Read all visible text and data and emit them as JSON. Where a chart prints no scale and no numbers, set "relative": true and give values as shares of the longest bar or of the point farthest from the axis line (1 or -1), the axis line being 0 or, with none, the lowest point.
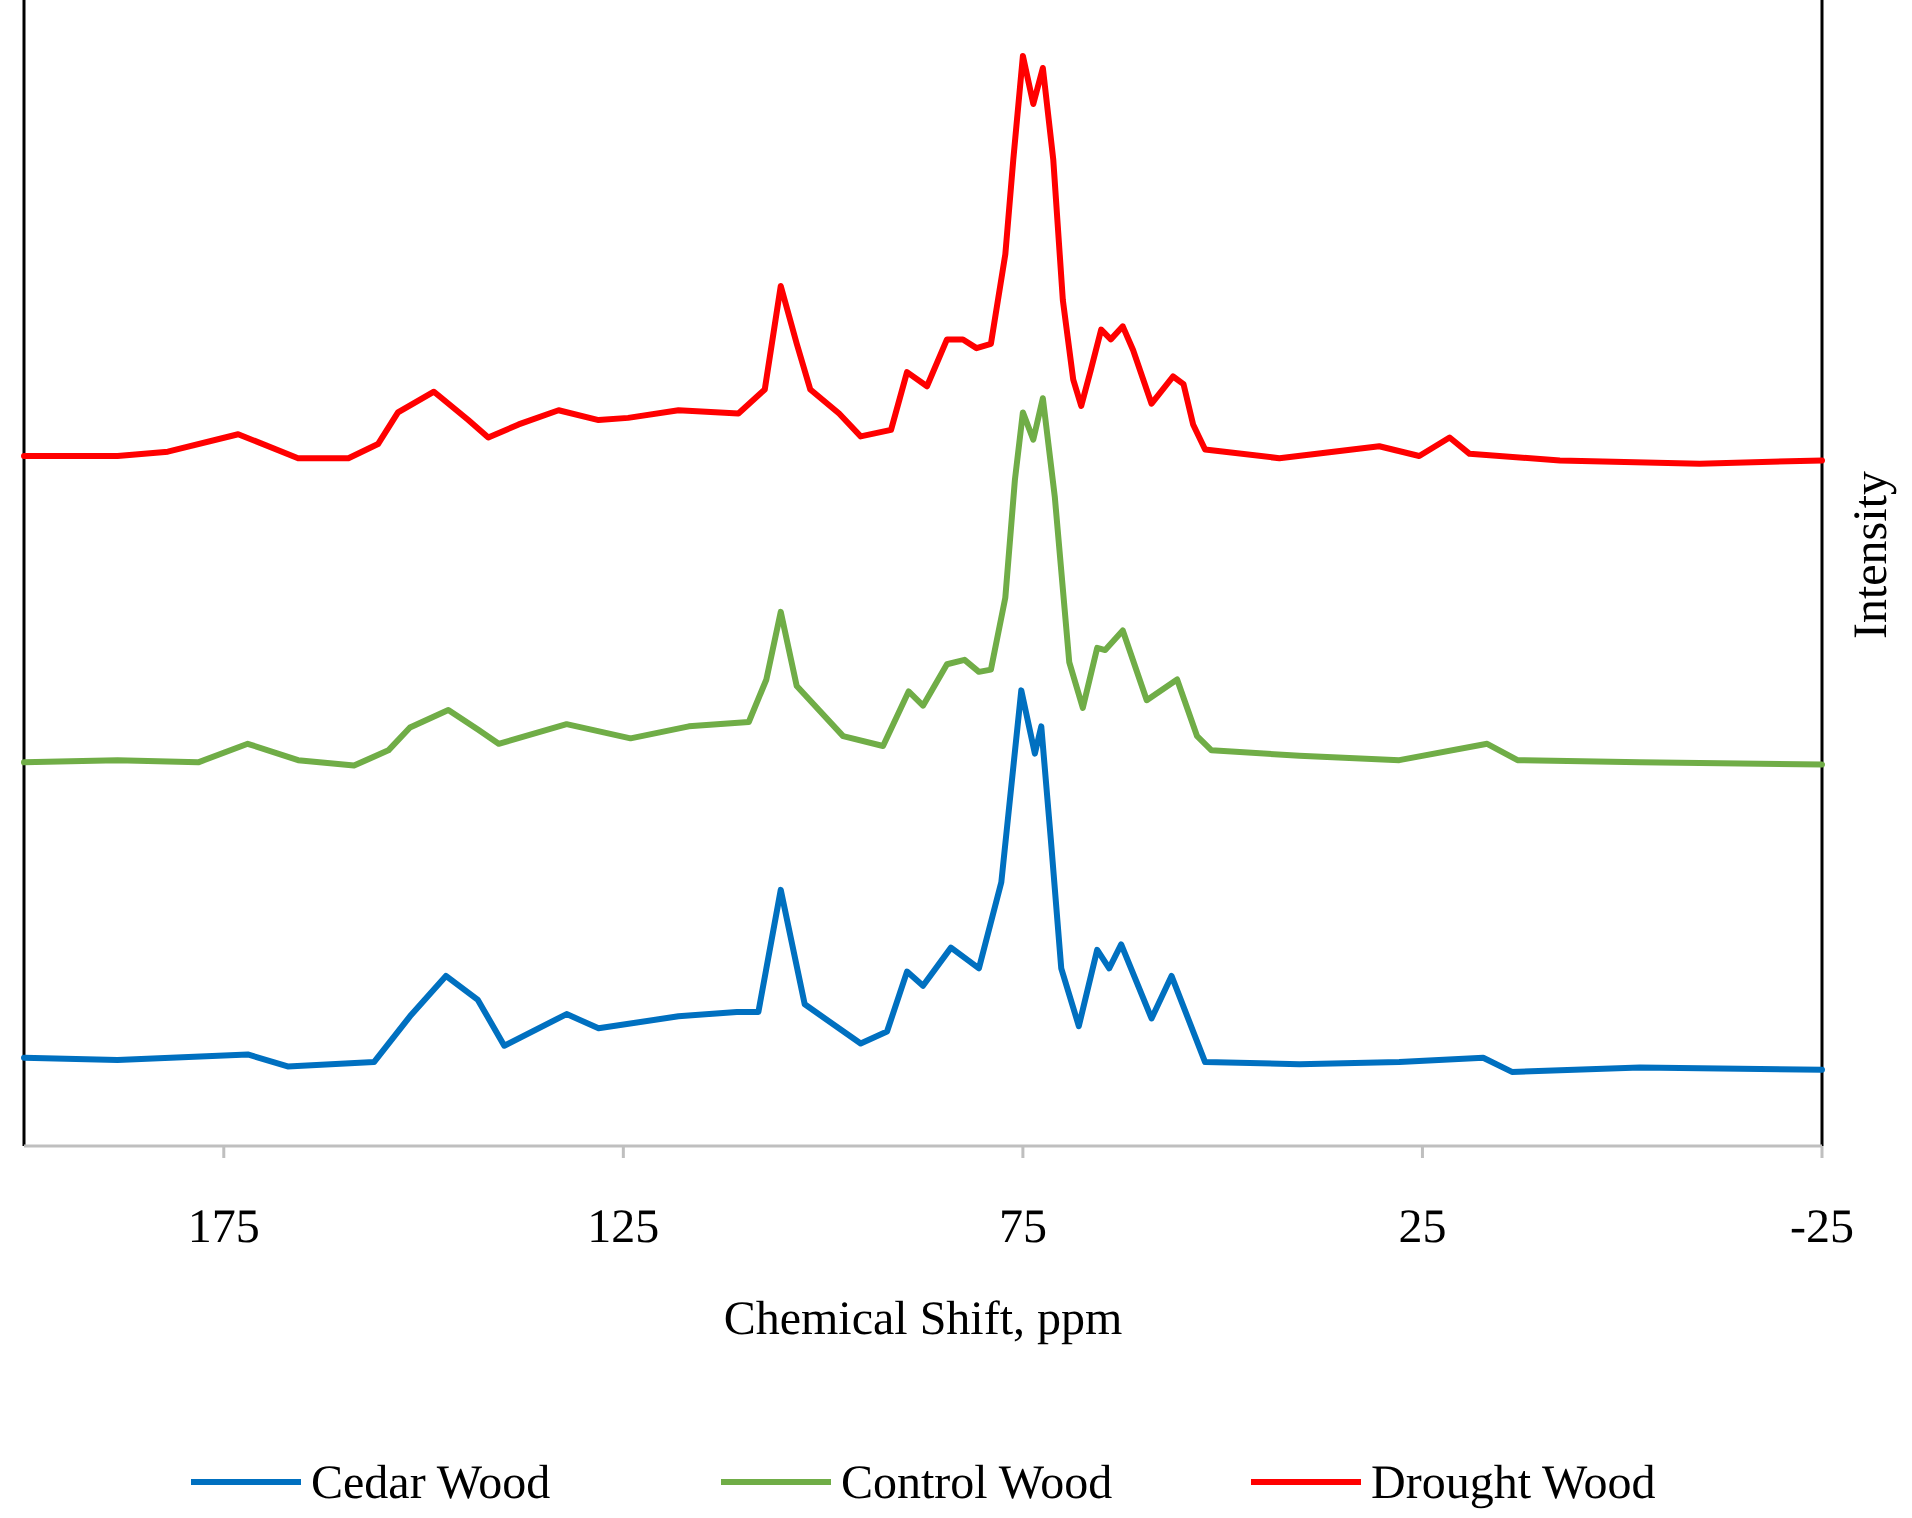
{
  "chart_data": {
    "type": "line",
    "xlabel": "Chemical Shift, ppm",
    "ylabel": "Intensity",
    "xlim": [
      200,
      -25
    ],
    "xticks": [
      175,
      125,
      75,
      25,
      -25
    ],
    "relative": true,
    "tick_labels": "x",
    "legend": "bottom",
    "series": [
      {
        "name": "Cedar Wood",
        "color": "#0070c0",
        "x": [
          200,
          188.3,
          172.0,
          167.0,
          156.2,
          151.7,
          147.2,
          143.2,
          139.9,
          132.1,
          128.1,
          118.1,
          110.8,
          108.1,
          105.3,
          102.3,
          95.3,
          92.0,
          89.5,
          87.5,
          84.0,
          80.5,
          77.7,
          75.2,
          73.5,
          72.7,
          71.5,
          70.2,
          68.0,
          65.7,
          64.2,
          62.7,
          58.9,
          56.4,
          52.2,
          40.4,
          27.9,
          17.4,
          13.8,
          -2.2,
          -25
        ],
        "values": [
          0.081,
          0.079,
          0.084,
          0.073,
          0.077,
          0.119,
          0.156,
          0.134,
          0.092,
          0.121,
          0.108,
          0.119,
          0.123,
          0.123,
          0.235,
          0.13,
          0.094,
          0.105,
          0.16,
          0.147,
          0.182,
          0.163,
          0.242,
          0.418,
          0.36,
          0.385,
          0.281,
          0.163,
          0.11,
          0.18,
          0.163,
          0.185,
          0.117,
          0.156,
          0.077,
          0.075,
          0.077,
          0.081,
          0.068,
          0.072,
          0.07
        ]
      },
      {
        "name": "Control Wood",
        "color": "#70ad47",
        "x": [
          200,
          188.3,
          178.2,
          172.0,
          165.7,
          158.7,
          154.4,
          151.7,
          146.9,
          143.2,
          140.6,
          132.1,
          124.1,
          116.8,
          109.3,
          107.1,
          105.3,
          103.3,
          97.5,
          92.5,
          89.3,
          87.5,
          84.5,
          82.3,
          80.5,
          79.0,
          77.2,
          76.0,
          75.0,
          73.7,
          72.5,
          71.0,
          69.2,
          67.5,
          65.7,
          64.7,
          62.5,
          59.5,
          55.7,
          53.2,
          51.4,
          40.4,
          27.9,
          16.9,
          13.1,
          -2.2,
          -25
        ],
        "values": [
          0.352,
          0.354,
          0.352,
          0.369,
          0.354,
          0.349,
          0.363,
          0.384,
          0.4,
          0.382,
          0.369,
          0.387,
          0.374,
          0.385,
          0.389,
          0.428,
          0.49,
          0.422,
          0.376,
          0.367,
          0.417,
          0.404,
          0.442,
          0.446,
          0.435,
          0.437,
          0.503,
          0.611,
          0.673,
          0.648,
          0.686,
          0.595,
          0.444,
          0.402,
          0.457,
          0.455,
          0.473,
          0.409,
          0.428,
          0.376,
          0.363,
          0.358,
          0.354,
          0.369,
          0.354,
          0.352,
          0.35
        ]
      },
      {
        "name": "Drought Wood",
        "color": "#ff0000",
        "x": [
          200,
          188.3,
          182.0,
          173.2,
          165.7,
          159.4,
          155.7,
          153.2,
          148.7,
          144.4,
          141.9,
          138.1,
          133.1,
          128.1,
          124.4,
          118.1,
          110.6,
          107.3,
          105.3,
          103.3,
          101.6,
          98.0,
          95.3,
          91.5,
          89.5,
          87.0,
          84.5,
          82.5,
          80.8,
          79.0,
          77.2,
          76.2,
          75.0,
          73.7,
          72.5,
          71.2,
          70.0,
          68.7,
          67.7,
          66.5,
          65.2,
          64.0,
          62.5,
          61.2,
          58.9,
          56.2,
          54.9,
          53.7,
          52.2,
          42.9,
          30.4,
          25.4,
          21.6,
          19.1,
          7.8,
          -9.7,
          -25
        ],
        "values": [
          0.633,
          0.633,
          0.637,
          0.653,
          0.631,
          0.631,
          0.644,
          0.673,
          0.692,
          0.666,
          0.65,
          0.662,
          0.675,
          0.666,
          0.668,
          0.675,
          0.672,
          0.694,
          0.789,
          0.736,
          0.694,
          0.672,
          0.651,
          0.657,
          0.71,
          0.697,
          0.74,
          0.74,
          0.732,
          0.736,
          0.818,
          0.905,
          1,
          0.956,
          0.989,
          0.905,
          0.776,
          0.703,
          0.679,
          0.712,
          0.749,
          0.74,
          0.752,
          0.73,
          0.681,
          0.706,
          0.699,
          0.662,
          0.639,
          0.631,
          0.642,
          0.633,
          0.65,
          0.635,
          0.629,
          0.626,
          0.629
        ]
      }
    ]
  }
}
